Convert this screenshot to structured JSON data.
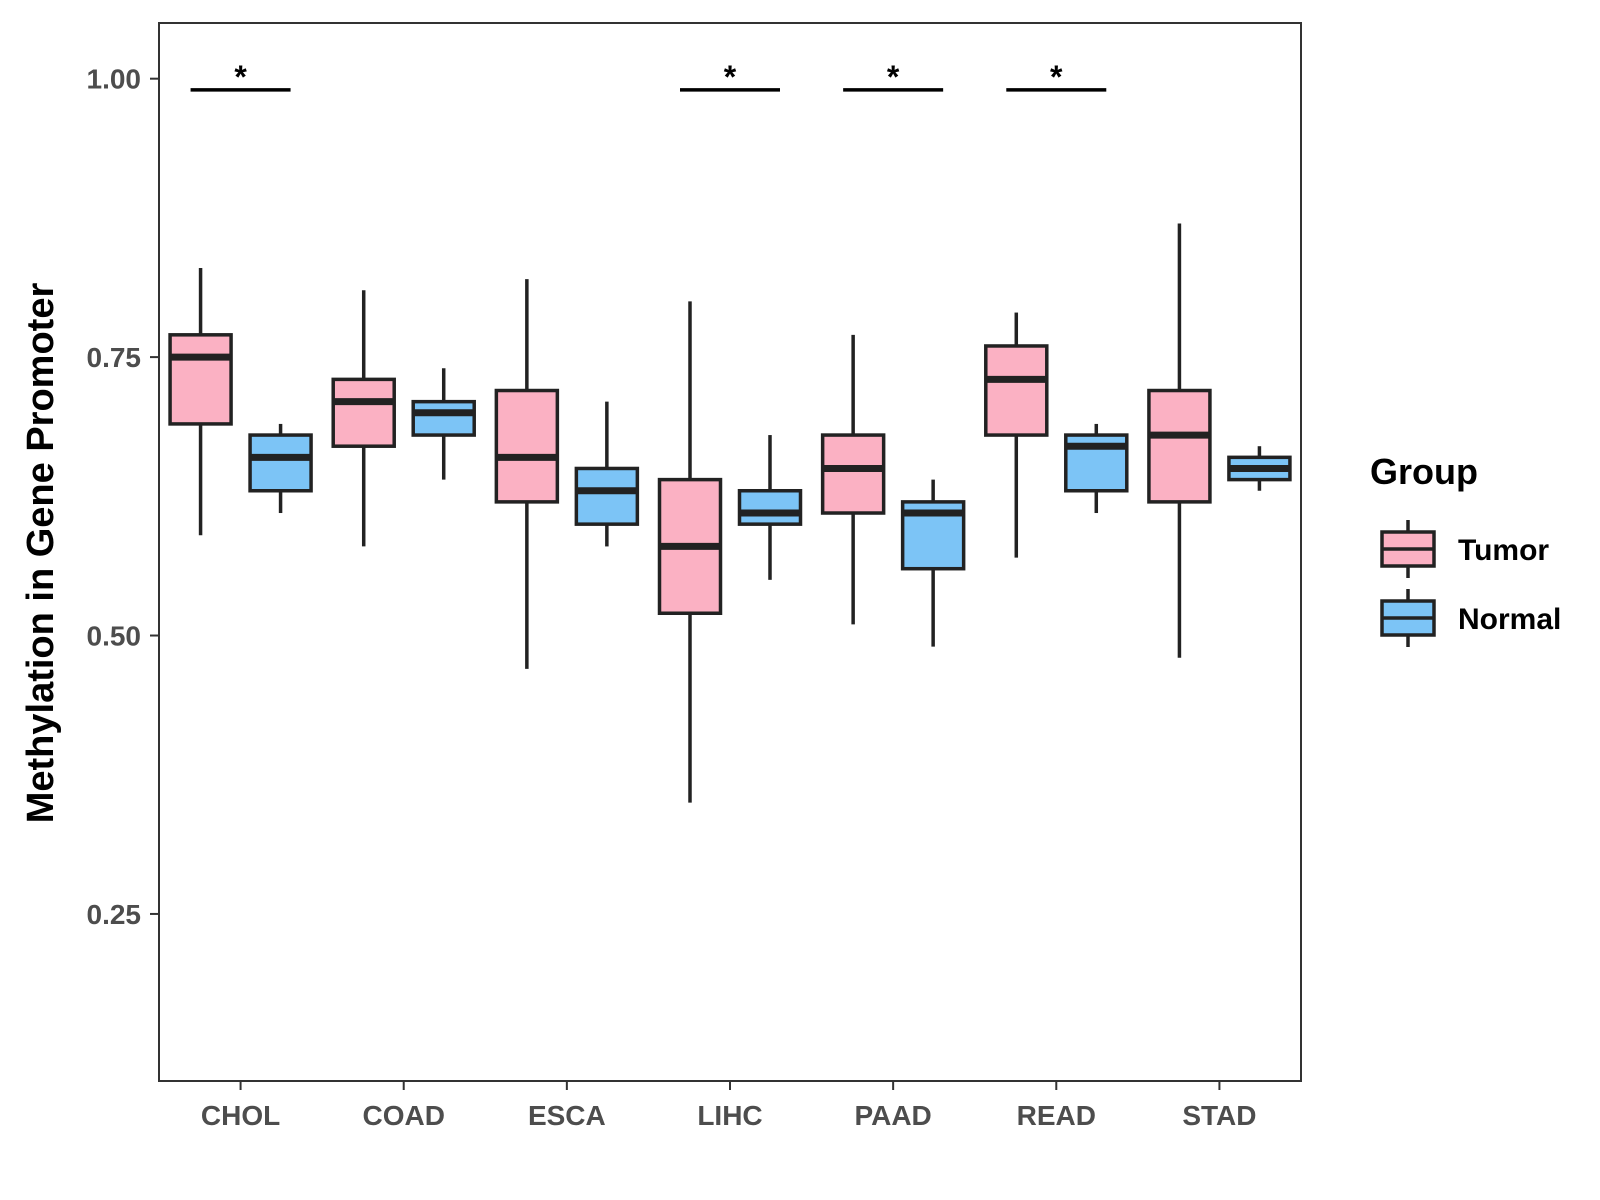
{
  "chart_data": {
    "type": "boxplot",
    "ylabel": "Methylation in Gene Promoter",
    "xlabel": "",
    "ylim": [
      0.1,
      1.05
    ],
    "yticks": [
      0.25,
      0.5,
      0.75,
      1.0
    ],
    "ytick_labels": [
      "0.25",
      "0.50",
      "0.75",
      "1.00"
    ],
    "categories": [
      "CHOL",
      "COAD",
      "ESCA",
      "LIHC",
      "PAAD",
      "READ",
      "STAD"
    ],
    "grid": false,
    "legend": {
      "title": "Group",
      "position": "right",
      "entries": [
        {
          "label": "Tumor",
          "color": "#FBB1C3"
        },
        {
          "label": "Normal",
          "color": "#7CC4F6"
        }
      ]
    },
    "series": [
      {
        "name": "Tumor",
        "color": "#FBB1C3",
        "boxes": [
          {
            "min": 0.59,
            "q1": 0.69,
            "median": 0.75,
            "q3": 0.77,
            "max": 0.83
          },
          {
            "min": 0.58,
            "q1": 0.67,
            "median": 0.71,
            "q3": 0.73,
            "max": 0.81
          },
          {
            "min": 0.47,
            "q1": 0.62,
            "median": 0.66,
            "q3": 0.72,
            "max": 0.82
          },
          {
            "min": 0.35,
            "q1": 0.52,
            "median": 0.58,
            "q3": 0.64,
            "max": 0.8
          },
          {
            "min": 0.51,
            "q1": 0.61,
            "median": 0.65,
            "q3": 0.68,
            "max": 0.77
          },
          {
            "min": 0.57,
            "q1": 0.68,
            "median": 0.73,
            "q3": 0.76,
            "max": 0.79
          },
          {
            "min": 0.48,
            "q1": 0.62,
            "median": 0.68,
            "q3": 0.72,
            "max": 0.87
          }
        ]
      },
      {
        "name": "Normal",
        "color": "#7CC4F6",
        "boxes": [
          {
            "min": 0.61,
            "q1": 0.63,
            "median": 0.66,
            "q3": 0.68,
            "max": 0.69
          },
          {
            "min": 0.64,
            "q1": 0.68,
            "median": 0.7,
            "q3": 0.71,
            "max": 0.74
          },
          {
            "min": 0.58,
            "q1": 0.6,
            "median": 0.63,
            "q3": 0.65,
            "max": 0.71
          },
          {
            "min": 0.55,
            "q1": 0.6,
            "median": 0.61,
            "q3": 0.63,
            "max": 0.68
          },
          {
            "min": 0.49,
            "q1": 0.56,
            "median": 0.61,
            "q3": 0.62,
            "max": 0.64
          },
          {
            "min": 0.61,
            "q1": 0.63,
            "median": 0.67,
            "q3": 0.68,
            "max": 0.69
          },
          {
            "min": 0.63,
            "q1": 0.64,
            "median": 0.65,
            "q3": 0.66,
            "max": 0.67
          }
        ]
      }
    ],
    "annotations": [
      {
        "category": "CHOL",
        "text": "*"
      },
      {
        "category": "LIHC",
        "text": "*"
      },
      {
        "category": "PAAD",
        "text": "*"
      },
      {
        "category": "READ",
        "text": "*"
      }
    ]
  }
}
